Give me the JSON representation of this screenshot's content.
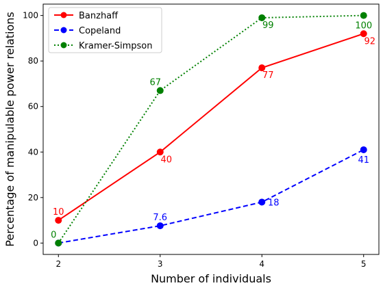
{
  "chart_data": {
    "type": "line",
    "xlabel": "Number of individuals",
    "ylabel": "Percentage of manipulable power relations",
    "xlim": [
      1.85,
      5.15
    ],
    "ylim": [
      -5,
      105
    ],
    "x_ticks": [
      2,
      3,
      4,
      5
    ],
    "y_ticks": [
      0,
      20,
      40,
      60,
      80,
      100
    ],
    "grid": false,
    "legend_position": "upper-left",
    "series": [
      {
        "name": "Banzhaff",
        "color": "#ff0000",
        "style": "solid",
        "x": [
          2,
          3,
          4,
          5
        ],
        "values": [
          10,
          40,
          77,
          92
        ],
        "labels": [
          "10",
          "40",
          "77",
          "92"
        ],
        "label_pos": [
          "above",
          "below-right",
          "below-right",
          "below-right"
        ]
      },
      {
        "name": "Copeland",
        "color": "#0000ff",
        "style": "dashed",
        "x": [
          2,
          3,
          4,
          5
        ],
        "values": [
          0,
          7.6,
          18,
          41
        ],
        "labels": [
          "",
          "7.6",
          "18",
          "41"
        ],
        "label_pos": [
          "none",
          "above",
          "right",
          "below"
        ]
      },
      {
        "name": "Kramer-Simpson",
        "color": "#008000",
        "style": "dotted",
        "x": [
          2,
          3,
          4,
          5
        ],
        "values": [
          0,
          67,
          99,
          100
        ],
        "labels": [
          "0",
          "67",
          "99",
          "100"
        ],
        "label_pos": [
          "above-left",
          "above-left",
          "below-right",
          "below"
        ]
      }
    ]
  }
}
